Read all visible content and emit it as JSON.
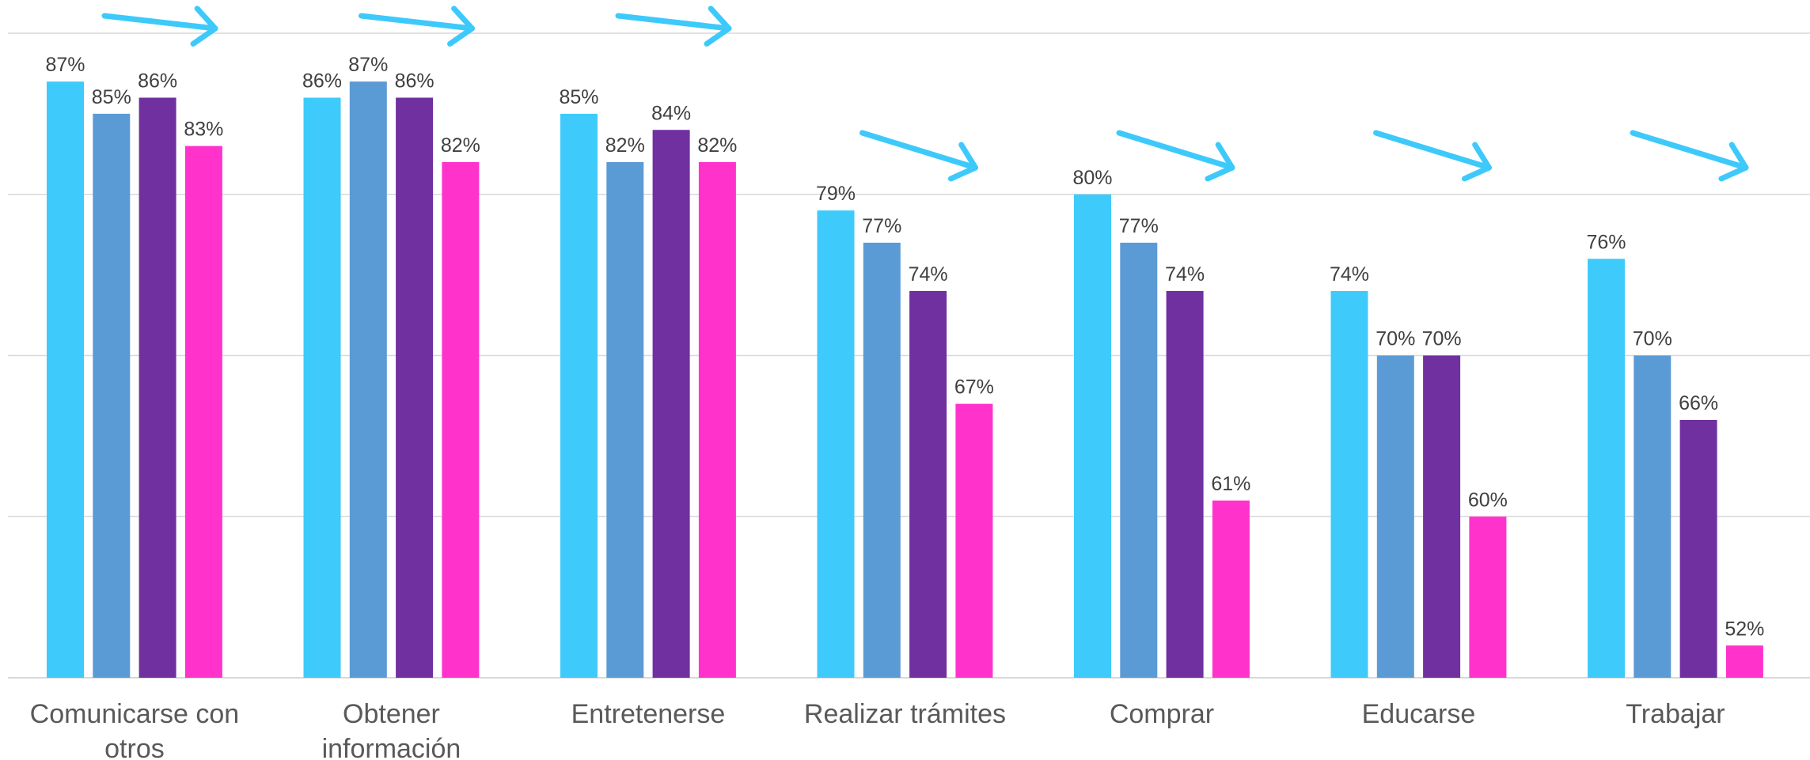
{
  "chart_data": {
    "type": "bar",
    "categories": [
      [
        "Comunicarse con",
        "otros"
      ],
      [
        "Obtener",
        "información"
      ],
      [
        "Entretenerse"
      ],
      [
        "Realizar trámites"
      ],
      [
        "Comprar"
      ],
      [
        "Educarse"
      ],
      [
        "Trabajar"
      ]
    ],
    "series": [
      {
        "color": "#3ecbfb",
        "values": [
          87,
          86,
          85,
          79,
          80,
          74,
          76
        ]
      },
      {
        "color": "#5b9bd5",
        "values": [
          85,
          87,
          82,
          77,
          77,
          70,
          70
        ]
      },
      {
        "color": "#7030a0",
        "values": [
          86,
          86,
          84,
          74,
          74,
          70,
          66
        ]
      },
      {
        "color": "#ff33cc",
        "values": [
          83,
          82,
          82,
          67,
          61,
          60,
          52
        ]
      }
    ],
    "value_suffix": "%",
    "ylim": [
      50,
      90
    ],
    "grid_values": [
      50,
      60,
      70,
      80,
      90
    ],
    "grid": true,
    "legend": "none",
    "trend_arrows": [
      "flat",
      "flat",
      "flat",
      "down",
      "down",
      "down",
      "down"
    ],
    "arrow_color": "#3ec9fb"
  }
}
